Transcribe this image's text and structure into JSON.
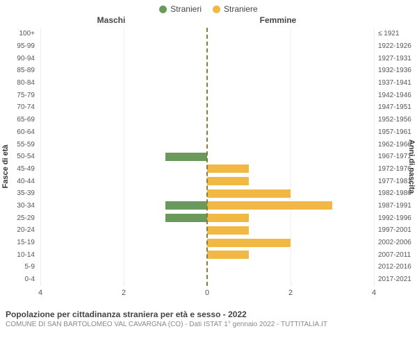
{
  "legend": {
    "male": {
      "label": "Stranieri",
      "color": "#6a9a5b"
    },
    "female": {
      "label": "Straniere",
      "color": "#f2b844"
    }
  },
  "headers": {
    "left": "Maschi",
    "right": "Femmine"
  },
  "yaxis": {
    "left_label": "Fasce di età",
    "right_label": "Anni di nascita"
  },
  "xaxis": {
    "max": 4,
    "ticks_left": [
      4,
      2,
      0
    ],
    "ticks_right": [
      0,
      2,
      4
    ]
  },
  "chart": {
    "type": "population-pyramid",
    "background_color": "#ffffff",
    "grid_color": "#eeeeee",
    "center_line_color": "#8b7a3a",
    "rows": [
      {
        "age": "100+",
        "birth": "≤ 1921",
        "m": 0,
        "f": 0
      },
      {
        "age": "95-99",
        "birth": "1922-1926",
        "m": 0,
        "f": 0
      },
      {
        "age": "90-94",
        "birth": "1927-1931",
        "m": 0,
        "f": 0
      },
      {
        "age": "85-89",
        "birth": "1932-1936",
        "m": 0,
        "f": 0
      },
      {
        "age": "80-84",
        "birth": "1937-1941",
        "m": 0,
        "f": 0
      },
      {
        "age": "75-79",
        "birth": "1942-1946",
        "m": 0,
        "f": 0
      },
      {
        "age": "70-74",
        "birth": "1947-1951",
        "m": 0,
        "f": 0
      },
      {
        "age": "65-69",
        "birth": "1952-1956",
        "m": 0,
        "f": 0
      },
      {
        "age": "60-64",
        "birth": "1957-1961",
        "m": 0,
        "f": 0
      },
      {
        "age": "55-59",
        "birth": "1962-1966",
        "m": 0,
        "f": 0
      },
      {
        "age": "50-54",
        "birth": "1967-1971",
        "m": 1,
        "f": 0
      },
      {
        "age": "45-49",
        "birth": "1972-1976",
        "m": 0,
        "f": 1
      },
      {
        "age": "40-44",
        "birth": "1977-1981",
        "m": 0,
        "f": 1
      },
      {
        "age": "35-39",
        "birth": "1982-1986",
        "m": 0,
        "f": 2
      },
      {
        "age": "30-34",
        "birth": "1987-1991",
        "m": 1,
        "f": 3
      },
      {
        "age": "25-29",
        "birth": "1992-1996",
        "m": 1,
        "f": 1
      },
      {
        "age": "20-24",
        "birth": "1997-2001",
        "m": 0,
        "f": 1
      },
      {
        "age": "15-19",
        "birth": "2002-2006",
        "m": 0,
        "f": 2
      },
      {
        "age": "10-14",
        "birth": "2007-2011",
        "m": 0,
        "f": 1
      },
      {
        "age": "5-9",
        "birth": "2012-2016",
        "m": 0,
        "f": 0
      },
      {
        "age": "0-4",
        "birth": "2017-2021",
        "m": 0,
        "f": 0
      }
    ]
  },
  "caption": {
    "title": "Popolazione per cittadinanza straniera per età e sesso - 2022",
    "sub": "COMUNE DI SAN BARTOLOMEO VAL CAVARGNA (CO) - Dati ISTAT 1° gennaio 2022 - TUTTITALIA.IT"
  }
}
